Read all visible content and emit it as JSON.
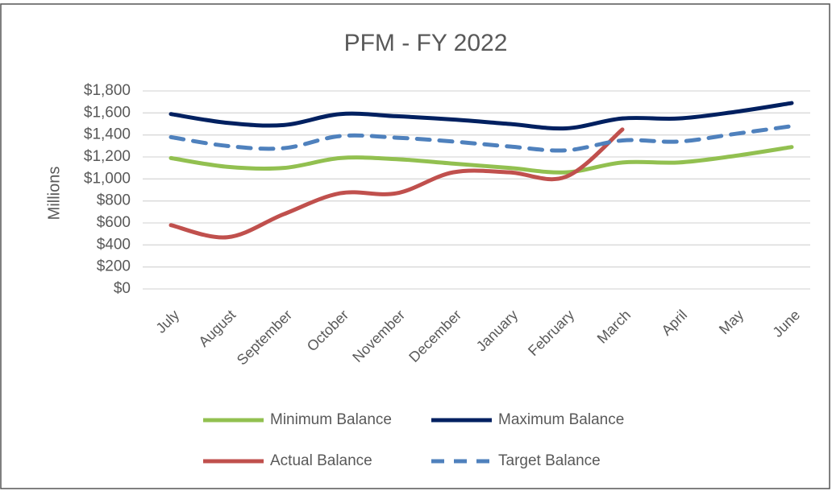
{
  "chart_data": {
    "type": "line",
    "title": "PFM - FY 2022",
    "y_label": "Millions",
    "categories": [
      "July",
      "August",
      "September",
      "October",
      "November",
      "December",
      "January",
      "February",
      "March",
      "April",
      "May",
      "June"
    ],
    "series": [
      {
        "name": "Minimum Balance",
        "color": "#92c050",
        "dashed": false,
        "values": [
          1190,
          1110,
          1100,
          1190,
          1180,
          1140,
          1100,
          1060,
          1150,
          1150,
          1210,
          1290
        ]
      },
      {
        "name": "Maximum Balance",
        "color": "#002060",
        "dashed": false,
        "values": [
          1590,
          1510,
          1490,
          1590,
          1570,
          1540,
          1500,
          1460,
          1550,
          1550,
          1610,
          1690
        ]
      },
      {
        "name": "Actual Balance",
        "color": "#c0504d",
        "dashed": false,
        "values": [
          580,
          470,
          680,
          870,
          870,
          1060,
          1060,
          1020,
          1450,
          null,
          null,
          null
        ]
      },
      {
        "name": "Target Balance",
        "color": "#4f81bd",
        "dashed": true,
        "values": [
          1380,
          1300,
          1280,
          1390,
          1375,
          1340,
          1295,
          1260,
          1350,
          1340,
          1410,
          1480
        ]
      }
    ],
    "ylim": [
      0,
      1800
    ],
    "yticks": [
      {
        "value": 0,
        "label": "$0"
      },
      {
        "value": 200,
        "label": "$200"
      },
      {
        "value": 400,
        "label": "$400"
      },
      {
        "value": 600,
        "label": "$600"
      },
      {
        "value": 800,
        "label": "$800"
      },
      {
        "value": 1000,
        "label": "$1,000"
      },
      {
        "value": 1200,
        "label": "$1,200"
      },
      {
        "value": 1400,
        "label": "$1,400"
      },
      {
        "value": 1600,
        "label": "$1,600"
      },
      {
        "value": 1800,
        "label": "$1,800"
      }
    ],
    "grid": true,
    "smooth": true,
    "legend": "bottom"
  }
}
